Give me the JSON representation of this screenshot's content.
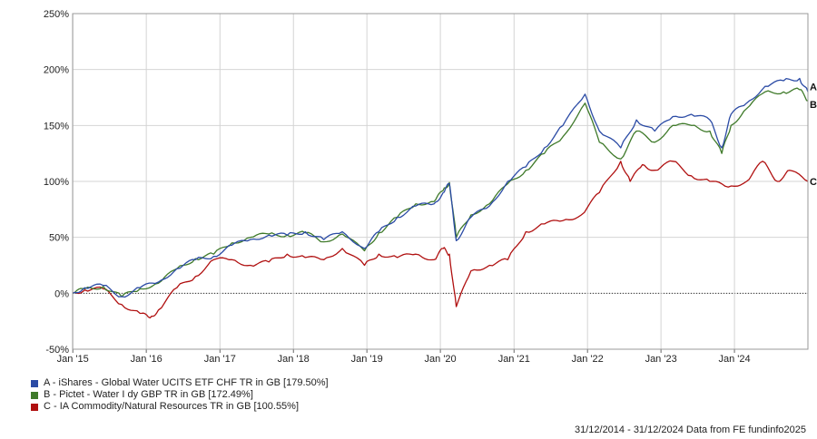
{
  "chart_data": {
    "type": "line",
    "title": "",
    "xlabel": "",
    "ylabel": "",
    "ylim": [
      -50,
      250
    ],
    "y_ticks": [
      "-50%",
      "0%",
      "50%",
      "100%",
      "150%",
      "200%",
      "250%"
    ],
    "x_ticks": [
      "Jan '15",
      "Jan '16",
      "Jan '17",
      "Jan '18",
      "Jan '19",
      "Jan '20",
      "Jan '21",
      "Jan '22",
      "Jan '23",
      "Jan '24"
    ],
    "x_range": [
      "2014-12-31",
      "2024-12-31"
    ],
    "grid": true,
    "legend_position": "bottom-left",
    "series": [
      {
        "name": "A - iShares - Global Water UCITS ETF CHF TR in GB [179.50%]",
        "short": "A",
        "color": "#2b4ba5",
        "x": [
          "2014-12-31",
          "2015-03-01",
          "2015-06-01",
          "2015-09-01",
          "2015-12-01",
          "2016-03-01",
          "2016-06-01",
          "2016-09-01",
          "2016-12-01",
          "2017-03-01",
          "2017-06-01",
          "2017-09-01",
          "2017-12-01",
          "2018-03-01",
          "2018-06-01",
          "2018-09-01",
          "2018-12-20",
          "2019-03-01",
          "2019-06-01",
          "2019-09-01",
          "2019-12-01",
          "2020-01-15",
          "2020-02-15",
          "2020-03-20",
          "2020-06-01",
          "2020-09-01",
          "2020-12-01",
          "2021-03-01",
          "2021-06-01",
          "2021-09-01",
          "2021-12-20",
          "2022-03-01",
          "2022-06-15",
          "2022-09-01",
          "2022-12-01",
          "2023-03-01",
          "2023-06-01",
          "2023-09-01",
          "2023-10-30",
          "2023-12-15",
          "2024-03-01",
          "2024-06-01",
          "2024-09-01",
          "2024-11-20",
          "2024-12-31"
        ],
        "values": [
          0,
          5,
          7,
          -3,
          5,
          10,
          22,
          30,
          33,
          43,
          48,
          52,
          52,
          55,
          48,
          55,
          40,
          55,
          68,
          78,
          80,
          90,
          98,
          47,
          68,
          78,
          100,
          113,
          130,
          150,
          178,
          145,
          130,
          155,
          145,
          158,
          160,
          155,
          130,
          160,
          170,
          185,
          190,
          192,
          180
        ]
      },
      {
        "name": "B - Pictet - Water I dy GBP TR in GB [172.49%]",
        "short": "B",
        "color": "#3f7a2a",
        "x": [
          "2014-12-31",
          "2015-03-01",
          "2015-06-01",
          "2015-09-01",
          "2015-12-01",
          "2016-03-01",
          "2016-06-01",
          "2016-09-01",
          "2016-12-01",
          "2017-03-01",
          "2017-06-01",
          "2017-09-01",
          "2017-12-01",
          "2018-03-01",
          "2018-06-01",
          "2018-09-01",
          "2018-12-20",
          "2019-03-01",
          "2019-06-01",
          "2019-09-01",
          "2019-12-01",
          "2020-01-15",
          "2020-02-15",
          "2020-03-20",
          "2020-06-01",
          "2020-09-01",
          "2020-12-01",
          "2021-03-01",
          "2021-06-01",
          "2021-09-01",
          "2021-12-20",
          "2022-03-01",
          "2022-06-15",
          "2022-09-01",
          "2022-12-01",
          "2023-03-01",
          "2023-06-01",
          "2023-09-01",
          "2023-10-30",
          "2023-12-15",
          "2024-03-01",
          "2024-06-01",
          "2024-09-01",
          "2024-11-20",
          "2024-12-31"
        ],
        "values": [
          0,
          4,
          6,
          -3,
          4,
          9,
          22,
          31,
          35,
          45,
          50,
          53,
          52,
          54,
          46,
          53,
          38,
          54,
          68,
          80,
          82,
          92,
          99,
          50,
          70,
          80,
          98,
          110,
          125,
          140,
          170,
          135,
          120,
          145,
          135,
          150,
          150,
          145,
          125,
          150,
          165,
          180,
          180,
          182,
          172
        ]
      },
      {
        "name": "C - IA Commodity/Natural Resources TR in GB [100.55%]",
        "short": "C",
        "color": "#b01010",
        "x": [
          "2014-12-31",
          "2015-03-01",
          "2015-06-01",
          "2015-09-01",
          "2015-12-01",
          "2016-01-20",
          "2016-03-01",
          "2016-06-01",
          "2016-09-01",
          "2016-12-01",
          "2017-03-01",
          "2017-06-01",
          "2017-09-01",
          "2017-12-01",
          "2018-03-01",
          "2018-06-01",
          "2018-09-01",
          "2018-12-20",
          "2019-03-01",
          "2019-06-01",
          "2019-09-01",
          "2019-12-01",
          "2020-01-15",
          "2020-02-15",
          "2020-03-20",
          "2020-06-01",
          "2020-09-01",
          "2020-12-01",
          "2021-03-01",
          "2021-06-01",
          "2021-09-01",
          "2021-12-01",
          "2022-03-01",
          "2022-06-15",
          "2022-08-01",
          "2022-10-01",
          "2022-12-01",
          "2023-03-01",
          "2023-06-01",
          "2023-09-01",
          "2023-12-01",
          "2024-03-01",
          "2024-05-20",
          "2024-08-01",
          "2024-10-01",
          "2024-12-31"
        ],
        "values": [
          0,
          3,
          4,
          -10,
          -18,
          -22,
          -15,
          5,
          15,
          30,
          30,
          25,
          28,
          35,
          32,
          30,
          40,
          25,
          35,
          32,
          35,
          30,
          40,
          35,
          -12,
          20,
          25,
          30,
          55,
          62,
          65,
          70,
          90,
          118,
          100,
          115,
          110,
          118,
          105,
          100,
          95,
          100,
          118,
          100,
          110,
          100
        ]
      }
    ],
    "end_labels": [
      "A",
      "B",
      "C"
    ]
  },
  "footer": {
    "text": "31/12/2014 - 31/12/2024 Data from FE fundinfo2025"
  }
}
